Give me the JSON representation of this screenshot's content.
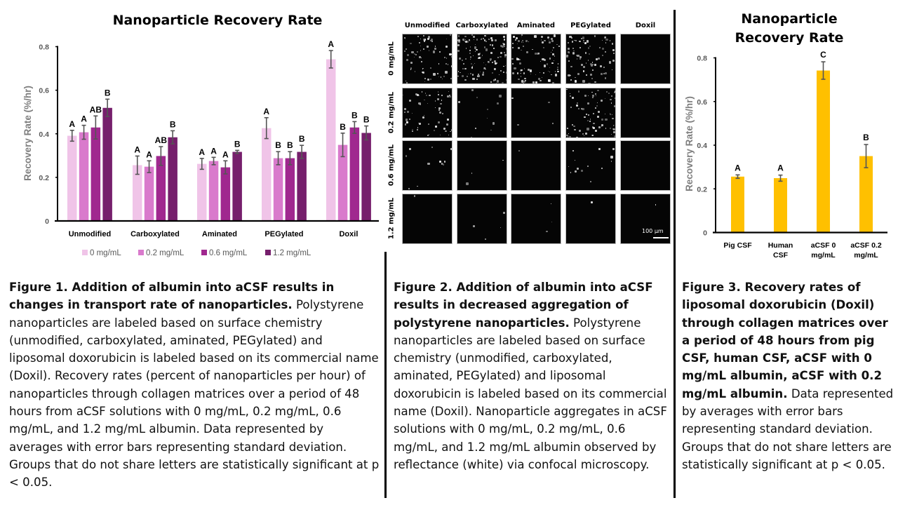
{
  "figure1": {
    "chart_data": {
      "type": "bar",
      "title": "Nanoparticle Recovery Rate",
      "xlabel": "",
      "ylabel": "Recovery Rate (%/hr)",
      "ylim": [
        0,
        0.8
      ],
      "yticks": [
        "0",
        "0.2",
        "0.4",
        "0.6",
        "0.8"
      ],
      "ytick_values": [
        0,
        0.2,
        0.4,
        0.6,
        0.8
      ],
      "categories": [
        "Unmodified",
        "Carboxylated",
        "Aminated",
        "PEGylated",
        "Doxil"
      ],
      "legend_position": "bottom",
      "series": [
        {
          "name": "0 mg/mL",
          "color": "#F0C4E8",
          "values": [
            0.391,
            0.256,
            0.262,
            0.426,
            0.742
          ],
          "errors": [
            0.025,
            0.042,
            0.025,
            0.048,
            0.04
          ],
          "letters": [
            "A",
            "A",
            "A",
            "A",
            "A"
          ]
        },
        {
          "name": "0.2 mg/mL",
          "color": "#D97ACC",
          "values": [
            0.407,
            0.249,
            0.275,
            0.288,
            0.349
          ],
          "errors": [
            0.032,
            0.027,
            0.017,
            0.03,
            0.054
          ],
          "letters": [
            "A",
            "A",
            "A",
            "B",
            "B"
          ]
        },
        {
          "name": "0.6 mg/mL",
          "color": "#A0288F",
          "values": [
            0.429,
            0.298,
            0.246,
            0.288,
            0.429
          ],
          "errors": [
            0.053,
            0.043,
            0.03,
            0.03,
            0.027
          ],
          "letters": [
            "AB",
            "AB",
            "A",
            "B",
            "B"
          ]
        },
        {
          "name": "1.2 mg/mL",
          "color": "#761F6C",
          "values": [
            0.519,
            0.384,
            0.317,
            0.317,
            0.404
          ],
          "errors": [
            0.04,
            0.03,
            0.007,
            0.03,
            0.032
          ],
          "letters": [
            "B",
            "B",
            "B",
            "B",
            "B"
          ]
        }
      ]
    },
    "caption_bold": "Figure 1. Addition of albumin into aCSF results in changes in transport rate of nanoparticles.",
    "caption_text": " Polystyrene nanoparticles are labeled based on surface chemistry (unmodified, carboxylated, aminated, PEGylated) and liposomal doxorubicin is labeled based on its commercial name (Doxil). Recovery rates (percent of nanoparticles per hour) of nanoparticles through collagen matrices over a period of 48 hours from aCSF solutions with 0 mg/mL, 0.2 mg/mL, 0.6 mg/mL, and 1.2 mg/mL albumin. Data represented by averages with error bars representing standard deviation. Groups that do not share letters are statistically significant at p < 0.05."
  },
  "figure2": {
    "columns": [
      "Unmodified",
      "Carboxylated",
      "Aminated",
      "PEGylated",
      "Doxil"
    ],
    "rows": [
      "0 mg/mL",
      "0.2 mg/mL",
      "0.6 mg/mL",
      "1.2 mg/mL"
    ],
    "aggregation_level": [
      [
        0.5,
        0.9,
        0.7,
        0.6,
        0.0
      ],
      [
        0.45,
        0.08,
        0.03,
        0.6,
        0.0
      ],
      [
        0.08,
        0.02,
        0.01,
        0.1,
        0.0
      ],
      [
        0.01,
        0.03,
        0.02,
        0.01,
        0.01
      ]
    ],
    "scale_bar_label": "100 µm",
    "caption_bold": "Figure 2. Addition of albumin into aCSF results in decreased aggregation of polystyrene nanoparticles.",
    "caption_text": " Polystyrene nanoparticles are labeled based on surface chemistry (unmodified, carboxylated, aminated, PEGylated) and liposomal doxorubicin is labeled based on its commercial name (Doxil). Nanoparticle aggregates in aCSF solutions with 0 mg/mL, 0.2 mg/mL, 0.6 mg/mL, and 1.2 mg/mL albumin observed by reflectance (white) via confocal microscopy."
  },
  "figure3": {
    "chart_data": {
      "type": "bar",
      "title": "Nanoparticle Recovery Rate",
      "title_lines": [
        "Nanoparticle",
        "Recovery Rate"
      ],
      "xlabel": "",
      "ylabel": "Recovery Rate (%/hr)",
      "ylim": [
        0,
        0.8
      ],
      "yticks": [
        "0",
        "0.2",
        "0.4",
        "0.6",
        "0.8"
      ],
      "ytick_values": [
        0,
        0.2,
        0.4,
        0.6,
        0.8
      ],
      "categories": [
        [
          "Pig CSF"
        ],
        [
          "Human",
          "CSF"
        ],
        [
          "aCSF 0",
          "mg/mL"
        ],
        [
          "aCSF 0.2",
          "mg/mL"
        ]
      ],
      "color": "#FFC000",
      "values": [
        0.256,
        0.249,
        0.742,
        0.35
      ],
      "errors": [
        0.008,
        0.014,
        0.04,
        0.053
      ],
      "letters": [
        "A",
        "A",
        "C",
        "B"
      ]
    },
    "caption_bold": "Figure 3. Recovery rates of liposomal doxorubicin (Doxil) through collagen matrices over a period of 48 hours from pig CSF, human CSF, aCSF with 0 mg/mL albumin, aCSF with 0.2 mg/mL albumin.",
    "caption_text": " Data represented by averages with error bars representing standard deviation. Groups that do not share letters are statistically significant at p < 0.05."
  }
}
